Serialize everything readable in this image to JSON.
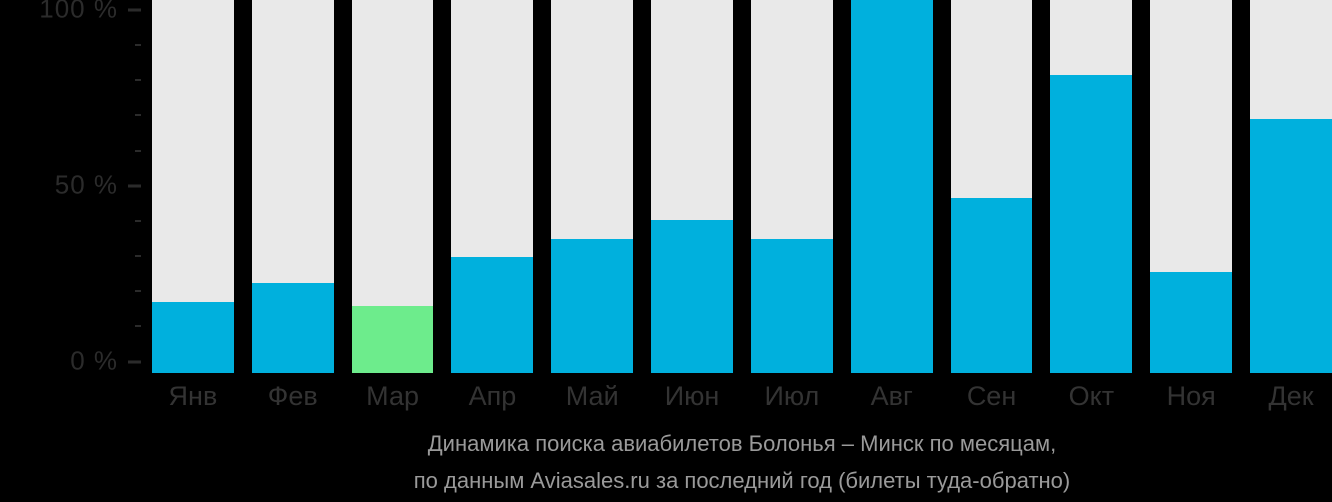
{
  "chart_data": {
    "type": "bar",
    "title": "Динамика поиска авиабилетов Болонья – Минск по месяцам,",
    "subtitle": "по данным Aviasales.ru за последний год (билеты туда-обратно)",
    "categories": [
      "Янв",
      "Фев",
      "Мар",
      "Апр",
      "Май",
      "Июн",
      "Июл",
      "Авг",
      "Сен",
      "Окт",
      "Ноя",
      "Дек"
    ],
    "category_names": [
      "jan",
      "feb",
      "mar",
      "apr",
      "may",
      "jun",
      "jul",
      "aug",
      "sep",
      "oct",
      "nov",
      "dec"
    ],
    "values": [
      19,
      24,
      18,
      31,
      36,
      41,
      36,
      100,
      47,
      80,
      27,
      68
    ],
    "unit": "%",
    "highlight_index": 2,
    "highlighted_month": "Мар",
    "ylim": [
      0,
      100
    ],
    "y_major_ticks": [
      {
        "value": 0,
        "label": "0 %"
      },
      {
        "value": 50,
        "label": "50 %"
      },
      {
        "value": 100,
        "label": "100 %"
      }
    ],
    "y_minor_tick_step": 10,
    "grid": "off",
    "legend": "none",
    "colors": {
      "background": "#000000",
      "bar_fill": "#00b0dd",
      "bar_highlight": "#6dec8c",
      "bar_track": "#e9e9e9",
      "axis_label": "#2b2b2b",
      "tick": "#2b2b2b",
      "month_label": "#333333",
      "caption": "#9a9a9a"
    }
  }
}
